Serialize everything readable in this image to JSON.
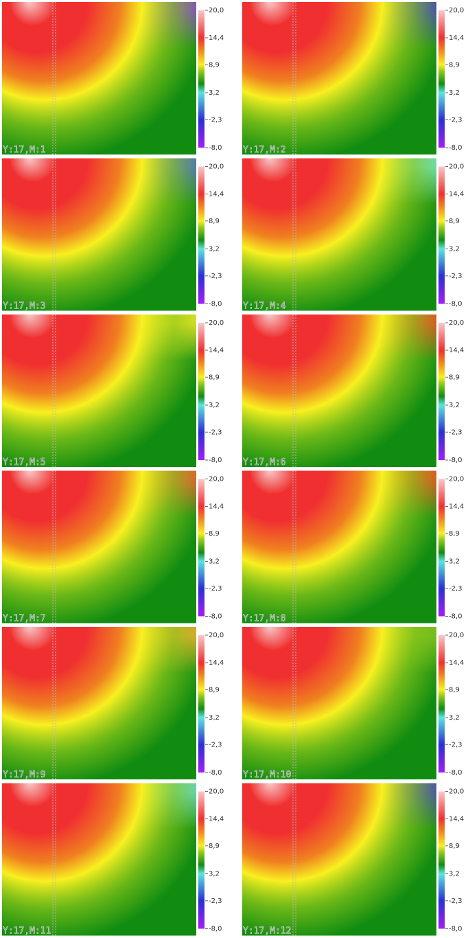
{
  "chart_data": [
    {
      "type": "heatmap",
      "title": "Y:17,M:1",
      "top_color": "#7a2ee8",
      "clim": [
        -8,
        20
      ],
      "cticks": [
        {
          "value": 20,
          "label": "20,0"
        },
        {
          "value": 14.4,
          "label": "14,4"
        },
        {
          "value": 8.9,
          "label": "8,9"
        },
        {
          "value": 3.2,
          "label": "3,2"
        },
        {
          "value": -2.3,
          "label": "-2,3"
        },
        {
          "value": -8,
          "label": "-8,0"
        }
      ],
      "colormap": [
        {
          "value": -8,
          "color": "#a41ef2"
        },
        {
          "value": -2.3,
          "color": "#2a30d4"
        },
        {
          "value": 3.2,
          "color": "#5ce4dc"
        },
        {
          "value": 5,
          "color": "#118c11"
        },
        {
          "value": 7.5,
          "color": "#8cc81a"
        },
        {
          "value": 8.9,
          "color": "#f8f020"
        },
        {
          "value": 12,
          "color": "#f08020"
        },
        {
          "value": 14.4,
          "color": "#f03030"
        },
        {
          "value": 20,
          "color": "#f8c8c8"
        }
      ]
    },
    {
      "type": "heatmap",
      "title": "Y:17,M:2",
      "top_color": "#2a2ad8",
      "clim": [
        -8,
        20
      ],
      "cticks": [
        {
          "value": 20,
          "label": "20,0"
        },
        {
          "value": 14.4,
          "label": "14,4"
        },
        {
          "value": 8.9,
          "label": "8,9"
        },
        {
          "value": 3.2,
          "label": "3,2"
        },
        {
          "value": -2.3,
          "label": "-2,3"
        },
        {
          "value": -8,
          "label": "-8,0"
        }
      ],
      "colormap": [
        {
          "value": -8,
          "color": "#a41ef2"
        },
        {
          "value": -2.3,
          "color": "#2a30d4"
        },
        {
          "value": 3.2,
          "color": "#5ce4dc"
        },
        {
          "value": 5,
          "color": "#118c11"
        },
        {
          "value": 7.5,
          "color": "#8cc81a"
        },
        {
          "value": 8.9,
          "color": "#f8f020"
        },
        {
          "value": 12,
          "color": "#f08020"
        },
        {
          "value": 14.4,
          "color": "#f03030"
        },
        {
          "value": 20,
          "color": "#f8c8c8"
        }
      ]
    },
    {
      "type": "heatmap",
      "title": "Y:17,M:3",
      "top_color": "#3a5ee0",
      "clim": [
        -8,
        20
      ],
      "cticks": [
        {
          "value": 20,
          "label": "20,0"
        },
        {
          "value": 14.4,
          "label": "14,4"
        },
        {
          "value": 8.9,
          "label": "8,9"
        },
        {
          "value": 3.2,
          "label": "3,2"
        },
        {
          "value": -2.3,
          "label": "-2,3"
        },
        {
          "value": -8,
          "label": "-8,0"
        }
      ],
      "colormap": [
        {
          "value": -8,
          "color": "#a41ef2"
        },
        {
          "value": -2.3,
          "color": "#2a30d4"
        },
        {
          "value": 3.2,
          "color": "#5ce4dc"
        },
        {
          "value": 5,
          "color": "#118c11"
        },
        {
          "value": 7.5,
          "color": "#8cc81a"
        },
        {
          "value": 8.9,
          "color": "#f8f020"
        },
        {
          "value": 12,
          "color": "#f08020"
        },
        {
          "value": 14.4,
          "color": "#f03030"
        },
        {
          "value": 20,
          "color": "#f8c8c8"
        }
      ]
    },
    {
      "type": "heatmap",
      "title": "Y:17,M:4",
      "top_color": "#62e2dc",
      "clim": [
        -8,
        20
      ],
      "cticks": [
        {
          "value": 20,
          "label": "20,0"
        },
        {
          "value": 14.4,
          "label": "14,4"
        },
        {
          "value": 8.9,
          "label": "8,9"
        },
        {
          "value": 3.2,
          "label": "3,2"
        },
        {
          "value": -2.3,
          "label": "-2,3"
        },
        {
          "value": -8,
          "label": "-8,0"
        }
      ],
      "colormap": [
        {
          "value": -8,
          "color": "#a41ef2"
        },
        {
          "value": -2.3,
          "color": "#2a30d4"
        },
        {
          "value": 3.2,
          "color": "#5ce4dc"
        },
        {
          "value": 5,
          "color": "#118c11"
        },
        {
          "value": 7.5,
          "color": "#8cc81a"
        },
        {
          "value": 8.9,
          "color": "#f8f020"
        },
        {
          "value": 12,
          "color": "#f08020"
        },
        {
          "value": 14.4,
          "color": "#f03030"
        },
        {
          "value": 20,
          "color": "#f8c8c8"
        }
      ]
    },
    {
      "type": "heatmap",
      "title": "Y:17,M:5",
      "top_color": "#f2e426",
      "clim": [
        -8,
        20
      ],
      "cticks": [
        {
          "value": 20,
          "label": "20,0"
        },
        {
          "value": 14.4,
          "label": "14,4"
        },
        {
          "value": 8.9,
          "label": "8,9"
        },
        {
          "value": 3.2,
          "label": "3,2"
        },
        {
          "value": -2.3,
          "label": "-2,3"
        },
        {
          "value": -8,
          "label": "-8,0"
        }
      ],
      "colormap": [
        {
          "value": -8,
          "color": "#a41ef2"
        },
        {
          "value": -2.3,
          "color": "#2a30d4"
        },
        {
          "value": 3.2,
          "color": "#5ce4dc"
        },
        {
          "value": 5,
          "color": "#118c11"
        },
        {
          "value": 7.5,
          "color": "#8cc81a"
        },
        {
          "value": 8.9,
          "color": "#f8f020"
        },
        {
          "value": 12,
          "color": "#f08020"
        },
        {
          "value": 14.4,
          "color": "#f03030"
        },
        {
          "value": 20,
          "color": "#f8c8c8"
        }
      ]
    },
    {
      "type": "heatmap",
      "title": "Y:17,M:6",
      "top_color": "#f03424",
      "clim": [
        -8,
        20
      ],
      "cticks": [
        {
          "value": 20,
          "label": "20,0"
        },
        {
          "value": 14.4,
          "label": "14,4"
        },
        {
          "value": 8.9,
          "label": "8,9"
        },
        {
          "value": 3.2,
          "label": "3,2"
        },
        {
          "value": -2.3,
          "label": "-2,3"
        },
        {
          "value": -8,
          "label": "-8,0"
        }
      ],
      "colormap": [
        {
          "value": -8,
          "color": "#a41ef2"
        },
        {
          "value": -2.3,
          "color": "#2a30d4"
        },
        {
          "value": 3.2,
          "color": "#5ce4dc"
        },
        {
          "value": 5,
          "color": "#118c11"
        },
        {
          "value": 7.5,
          "color": "#8cc81a"
        },
        {
          "value": 8.9,
          "color": "#f8f020"
        },
        {
          "value": 12,
          "color": "#f08020"
        },
        {
          "value": 14.4,
          "color": "#f03030"
        },
        {
          "value": 20,
          "color": "#f8c8c8"
        }
      ]
    },
    {
      "type": "heatmap",
      "title": "Y:17,M:7",
      "top_color": "#f04434",
      "clim": [
        -8,
        20
      ],
      "cticks": [
        {
          "value": 20,
          "label": "20,0"
        },
        {
          "value": 14.4,
          "label": "14,4"
        },
        {
          "value": 8.9,
          "label": "8,9"
        },
        {
          "value": 3.2,
          "label": "3,2"
        },
        {
          "value": -2.3,
          "label": "-2,3"
        },
        {
          "value": -8,
          "label": "-8,0"
        }
      ],
      "colormap": [
        {
          "value": -8,
          "color": "#a41ef2"
        },
        {
          "value": -2.3,
          "color": "#2a30d4"
        },
        {
          "value": 3.2,
          "color": "#5ce4dc"
        },
        {
          "value": 5,
          "color": "#118c11"
        },
        {
          "value": 7.5,
          "color": "#8cc81a"
        },
        {
          "value": 8.9,
          "color": "#f8f020"
        },
        {
          "value": 12,
          "color": "#f08020"
        },
        {
          "value": 14.4,
          "color": "#f03030"
        },
        {
          "value": 20,
          "color": "#f8c8c8"
        }
      ]
    },
    {
      "type": "heatmap",
      "title": "Y:17,M:8",
      "top_color": "#f03424",
      "clim": [
        -8,
        20
      ],
      "cticks": [
        {
          "value": 20,
          "label": "20,0"
        },
        {
          "value": 14.4,
          "label": "14,4"
        },
        {
          "value": 8.9,
          "label": "8,9"
        },
        {
          "value": 3.2,
          "label": "3,2"
        },
        {
          "value": -2.3,
          "label": "-2,3"
        },
        {
          "value": -8,
          "label": "-8,0"
        }
      ],
      "colormap": [
        {
          "value": -8,
          "color": "#a41ef2"
        },
        {
          "value": -2.3,
          "color": "#2a30d4"
        },
        {
          "value": 3.2,
          "color": "#5ce4dc"
        },
        {
          "value": 5,
          "color": "#118c11"
        },
        {
          "value": 7.5,
          "color": "#8cc81a"
        },
        {
          "value": 8.9,
          "color": "#f8f020"
        },
        {
          "value": 12,
          "color": "#f08020"
        },
        {
          "value": 14.4,
          "color": "#f03030"
        },
        {
          "value": 20,
          "color": "#f8c8c8"
        }
      ]
    },
    {
      "type": "heatmap",
      "title": "Y:17,M:9",
      "top_color": "#f0a030",
      "clim": [
        -8,
        20
      ],
      "cticks": [
        {
          "value": 20,
          "label": "20,0"
        },
        {
          "value": 14.4,
          "label": "14,4"
        },
        {
          "value": 8.9,
          "label": "8,9"
        },
        {
          "value": 3.2,
          "label": "3,2"
        },
        {
          "value": -2.3,
          "label": "-2,3"
        },
        {
          "value": -8,
          "label": "-8,0"
        }
      ],
      "colormap": [
        {
          "value": -8,
          "color": "#a41ef2"
        },
        {
          "value": -2.3,
          "color": "#2a30d4"
        },
        {
          "value": 3.2,
          "color": "#5ce4dc"
        },
        {
          "value": 5,
          "color": "#118c11"
        },
        {
          "value": 7.5,
          "color": "#8cc81a"
        },
        {
          "value": 8.9,
          "color": "#f8f020"
        },
        {
          "value": 12,
          "color": "#f08020"
        },
        {
          "value": 14.4,
          "color": "#f03030"
        },
        {
          "value": 20,
          "color": "#f8c8c8"
        }
      ]
    },
    {
      "type": "heatmap",
      "title": "Y:17,M:10",
      "top_color": "#6cb81c",
      "clim": [
        -8,
        20
      ],
      "cticks": [
        {
          "value": 20,
          "label": "20,0"
        },
        {
          "value": 14.4,
          "label": "14,4"
        },
        {
          "value": 8.9,
          "label": "8,9"
        },
        {
          "value": 3.2,
          "label": "3,2"
        },
        {
          "value": -2.3,
          "label": "-2,3"
        },
        {
          "value": -8,
          "label": "-8,0"
        }
      ],
      "colormap": [
        {
          "value": -8,
          "color": "#a41ef2"
        },
        {
          "value": -2.3,
          "color": "#2a30d4"
        },
        {
          "value": 3.2,
          "color": "#5ce4dc"
        },
        {
          "value": 5,
          "color": "#118c11"
        },
        {
          "value": 7.5,
          "color": "#8cc81a"
        },
        {
          "value": 8.9,
          "color": "#f8f020"
        },
        {
          "value": 12,
          "color": "#f08020"
        },
        {
          "value": 14.4,
          "color": "#f03030"
        },
        {
          "value": 20,
          "color": "#f8c8c8"
        }
      ]
    },
    {
      "type": "heatmap",
      "title": "Y:17,M:11",
      "top_color": "#58d8e0",
      "clim": [
        -8,
        20
      ],
      "cticks": [
        {
          "value": 20,
          "label": "20,0"
        },
        {
          "value": 14.4,
          "label": "14,4"
        },
        {
          "value": 8.9,
          "label": "8,9"
        },
        {
          "value": 3.2,
          "label": "3,2"
        },
        {
          "value": -2.3,
          "label": "-2,3"
        },
        {
          "value": -8,
          "label": "-8,0"
        }
      ],
      "colormap": [
        {
          "value": -8,
          "color": "#a41ef2"
        },
        {
          "value": -2.3,
          "color": "#2a30d4"
        },
        {
          "value": 3.2,
          "color": "#5ce4dc"
        },
        {
          "value": 5,
          "color": "#118c11"
        },
        {
          "value": 7.5,
          "color": "#8cc81a"
        },
        {
          "value": 8.9,
          "color": "#f8f020"
        },
        {
          "value": 12,
          "color": "#f08020"
        },
        {
          "value": 14.4,
          "color": "#f03030"
        },
        {
          "value": 20,
          "color": "#f8c8c8"
        }
      ]
    },
    {
      "type": "heatmap",
      "title": "Y:17,M:12",
      "top_color": "#2e2ed4",
      "clim": [
        -8,
        20
      ],
      "cticks": [
        {
          "value": 20,
          "label": "20,0"
        },
        {
          "value": 14.4,
          "label": "14,4"
        },
        {
          "value": 8.9,
          "label": "8,9"
        },
        {
          "value": 3.2,
          "label": "3,2"
        },
        {
          "value": -2.3,
          "label": "-2,3"
        },
        {
          "value": -8,
          "label": "-8,0"
        }
      ],
      "colormap": [
        {
          "value": -8,
          "color": "#a41ef2"
        },
        {
          "value": -2.3,
          "color": "#2a30d4"
        },
        {
          "value": 3.2,
          "color": "#5ce4dc"
        },
        {
          "value": 5,
          "color": "#118c11"
        },
        {
          "value": 7.5,
          "color": "#8cc81a"
        },
        {
          "value": 8.9,
          "color": "#f8f020"
        },
        {
          "value": 12,
          "color": "#f08020"
        },
        {
          "value": 14.4,
          "color": "#f03030"
        },
        {
          "value": 20,
          "color": "#f8c8c8"
        }
      ]
    }
  ]
}
